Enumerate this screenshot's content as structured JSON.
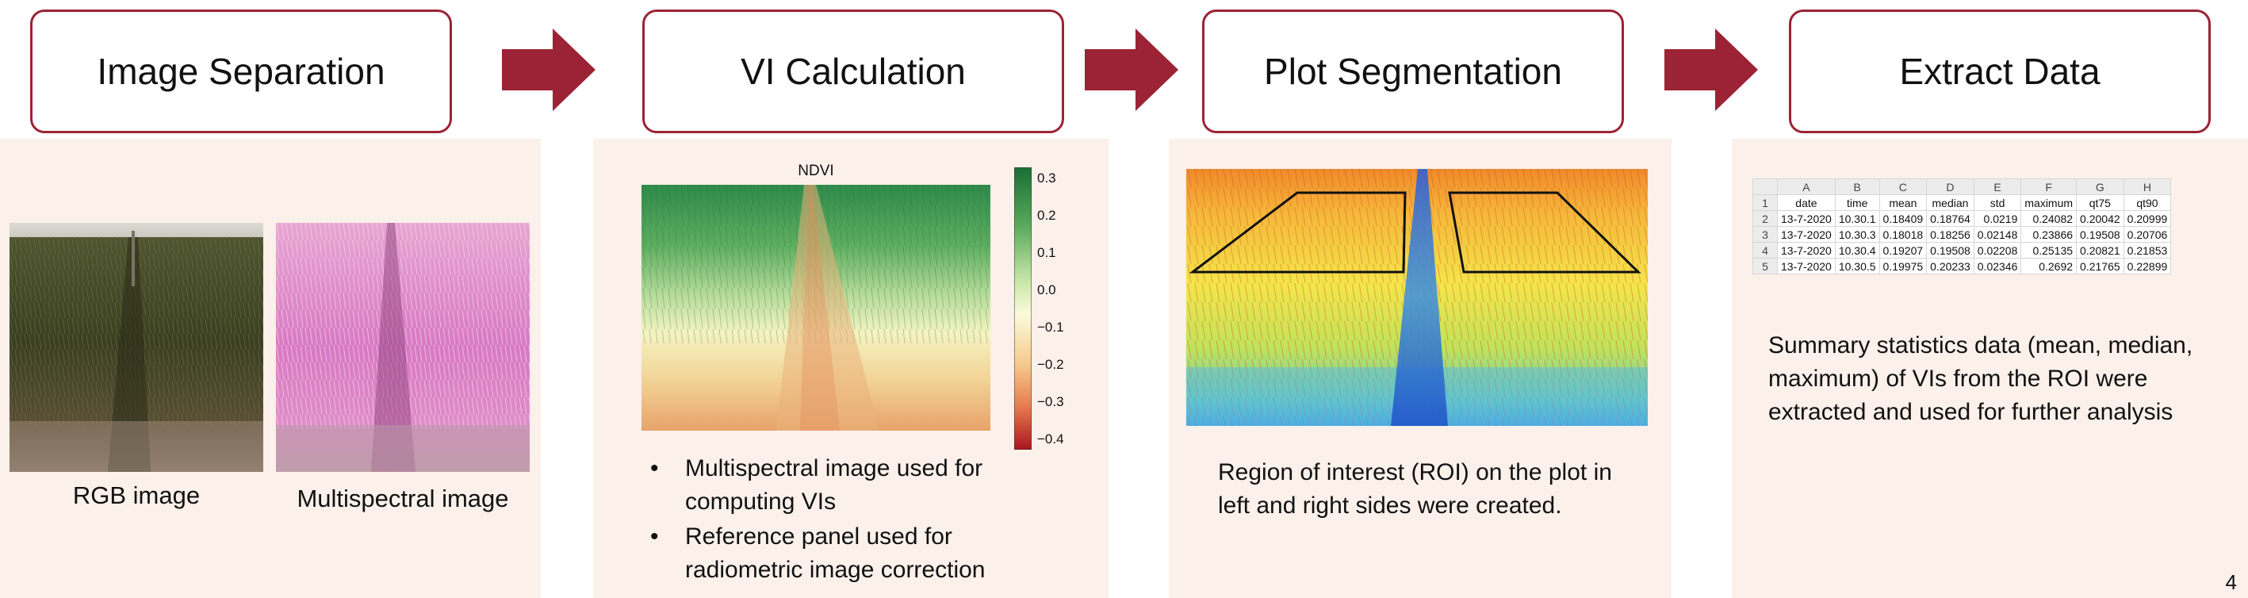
{
  "steps": [
    {
      "label": "Image Separation"
    },
    {
      "label": "VI Calculation"
    },
    {
      "label": "Plot Segmentation"
    },
    {
      "label": "Extract Data"
    }
  ],
  "accent_color": "#9b2335",
  "panel_color": "#fbf0ea",
  "panel1": {
    "rgb_caption": "RGB image",
    "ms_caption": "Multispectral image"
  },
  "panel2": {
    "chart_title": "NDVI",
    "colorbar_ticks": [
      "0.3",
      "0.2",
      "0.1",
      "0.0",
      "−0.1",
      "−0.2",
      "−0.3",
      "−0.4"
    ],
    "bullets": [
      "Multispectral image used for computing VIs",
      "Reference panel used for radiometric image correction"
    ]
  },
  "panel3": {
    "text": "Region of interest (ROI) on the plot in left and right sides were created."
  },
  "panel4": {
    "spreadsheet": {
      "columns": [
        "",
        "A",
        "B",
        "C",
        "D",
        "E",
        "F",
        "G",
        "H"
      ],
      "rows": [
        [
          "1",
          "date",
          "time",
          "mean",
          "median",
          "std",
          "maximum",
          "qt75",
          "qt90"
        ],
        [
          "2",
          "13-7-2020",
          "10.30.1",
          "0.18409",
          "0.18764",
          "0.0219",
          "0.24082",
          "0.20042",
          "0.20999"
        ],
        [
          "3",
          "13-7-2020",
          "10.30.3",
          "0.18018",
          "0.18256",
          "0.02148",
          "0.23866",
          "0.19508",
          "0.20706"
        ],
        [
          "4",
          "13-7-2020",
          "10.30.4",
          "0.19207",
          "0.19508",
          "0.02208",
          "0.25135",
          "0.20821",
          "0.21853"
        ],
        [
          "5",
          "13-7-2020",
          "10.30.5",
          "0.19975",
          "0.20233",
          "0.02346",
          "0.2692",
          "0.21765",
          "0.22899"
        ]
      ]
    },
    "text": "Summary statistics data (mean, median, maximum) of VIs from the ROI were extracted and used for further analysis"
  },
  "page_number": "4"
}
